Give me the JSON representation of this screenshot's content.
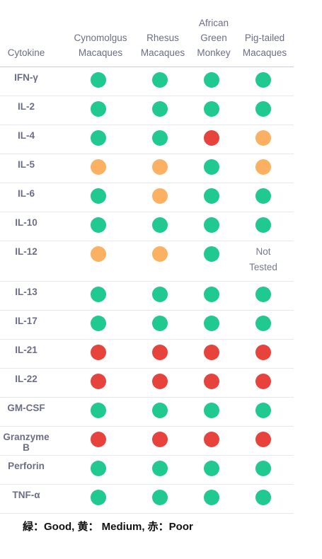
{
  "colors": {
    "good": "#1fc98f",
    "medium": "#fbb161",
    "poor": "#e8423d"
  },
  "headers": {
    "cytokine": "Cytokine",
    "species": [
      [
        "Cynomolgus",
        "Macaques"
      ],
      [
        "Rhesus",
        "Macaques"
      ],
      [
        "African",
        "Green",
        "Monkey"
      ],
      [
        "Pig-tailed",
        "Macaques"
      ]
    ]
  },
  "rows": [
    {
      "label": "IFN-γ",
      "values": [
        "good",
        "good",
        "good",
        "good"
      ]
    },
    {
      "label": "IL-2",
      "values": [
        "good",
        "good",
        "good",
        "good"
      ]
    },
    {
      "label": "IL-4",
      "values": [
        "good",
        "good",
        "poor",
        "medium"
      ]
    },
    {
      "label": "IL-5",
      "values": [
        "medium",
        "medium",
        "good",
        "medium"
      ]
    },
    {
      "label": "IL-6",
      "values": [
        "good",
        "medium",
        "good",
        "good"
      ]
    },
    {
      "label": "IL-10",
      "values": [
        "good",
        "good",
        "good",
        "good"
      ]
    },
    {
      "label": "IL-12",
      "values": [
        "medium",
        "medium",
        "good",
        "Not Tested"
      ]
    },
    {
      "label": "IL-13",
      "values": [
        "good",
        "good",
        "good",
        "good"
      ]
    },
    {
      "label": "IL-17",
      "values": [
        "good",
        "good",
        "good",
        "good"
      ]
    },
    {
      "label": "IL-21",
      "values": [
        "poor",
        "poor",
        "poor",
        "poor"
      ]
    },
    {
      "label": "IL-22",
      "values": [
        "poor",
        "poor",
        "poor",
        "poor"
      ]
    },
    {
      "label": "GM-CSF",
      "values": [
        "good",
        "good",
        "good",
        "good"
      ]
    },
    {
      "label": "Granzyme B",
      "values": [
        "poor",
        "poor",
        "poor",
        "poor"
      ]
    },
    {
      "label": "Perforin",
      "values": [
        "good",
        "good",
        "good",
        "good"
      ]
    },
    {
      "label": "TNF-α",
      "values": [
        "good",
        "good",
        "good",
        "good"
      ]
    }
  ],
  "legend": "緑：Good, 黄： Medium, 赤：Poor"
}
